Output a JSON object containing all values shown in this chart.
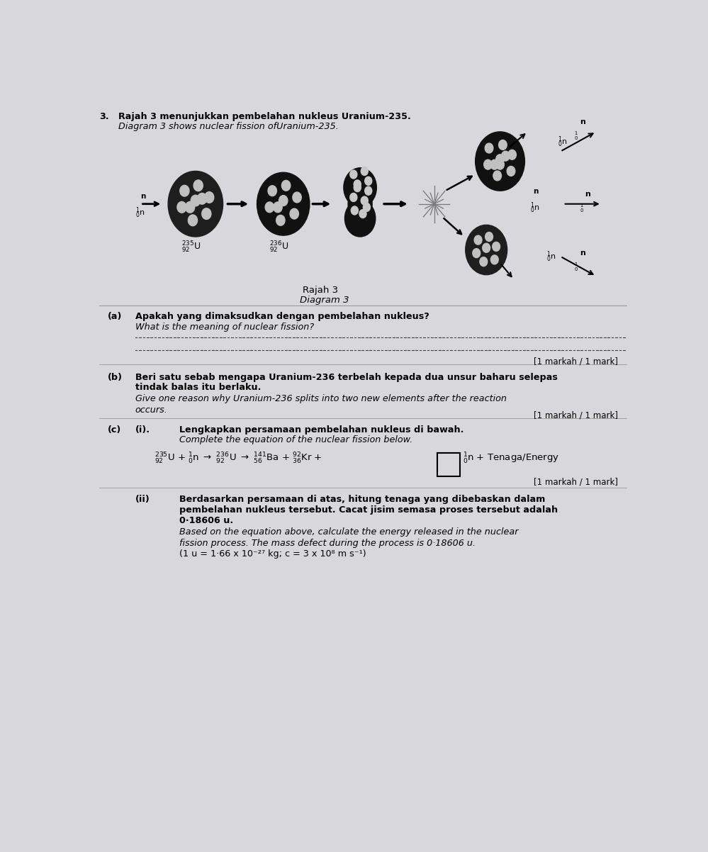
{
  "bg_color": "#d8d8dc",
  "text_color": "#000000",
  "page_width": 9.99,
  "page_height": 12.02,
  "question_number": "3.",
  "title_line1": "Rajah 3 menunjukkan pembelahan nukleus Uranium-235.",
  "title_line2": "Diagram 3 shows nuclear fission of​Uranium-235.",
  "diagram_label1": "Rajah 3",
  "diagram_label2": "Diagram 3",
  "part_a_label": "(a)",
  "part_a_q1": "Apakah yang dimaksudkan dengan pembelahan nukleus?",
  "part_a_q2": "What is the meaning of nuclear fission?",
  "part_a_mark": "[1 markah / 1 mark]",
  "part_b_label": "(b)",
  "part_b_q1": "Beri satu sebab mengapa Uranium-236 terbelah kepada dua unsur baharu selepas",
  "part_b_q2": "tindak balas itu berlaku.",
  "part_b_q3": "Give one reason why Uranium-236 splits into two new elements after the reaction",
  "part_b_q4": "occurs.",
  "part_b_mark": "[1 markah / 1 mark]",
  "part_c_label": "(c)",
  "part_ci_label": "(i).",
  "part_ci_q1": "Lengkapkan persamaan pembelahan nukleus di bawah.",
  "part_ci_q2": "Complete the equation of the nuclear fission below.",
  "part_ci_mark": "[1 markah / 1 mark]",
  "part_cii_label": "(ii)",
  "part_cii_q1": "Berdasarkan persamaan di atas, hitung tenaga yang dibebaskan dalam",
  "part_cii_q2": "pembelahan nukleus tersebut. Cacat jisim semasa proses tersebut adalah",
  "part_cii_q3": "0·18606 u.",
  "part_cii_q4": "Based on the equation above, calculate the energy released in the nuclear",
  "part_cii_q5": "fission process. The mass defect during the process is 0·18606 u.",
  "part_cii_q6": "(1 u = 1·66 x 10⁻²⁷ kg; c = 3 x 10⁸ m s⁻¹)"
}
